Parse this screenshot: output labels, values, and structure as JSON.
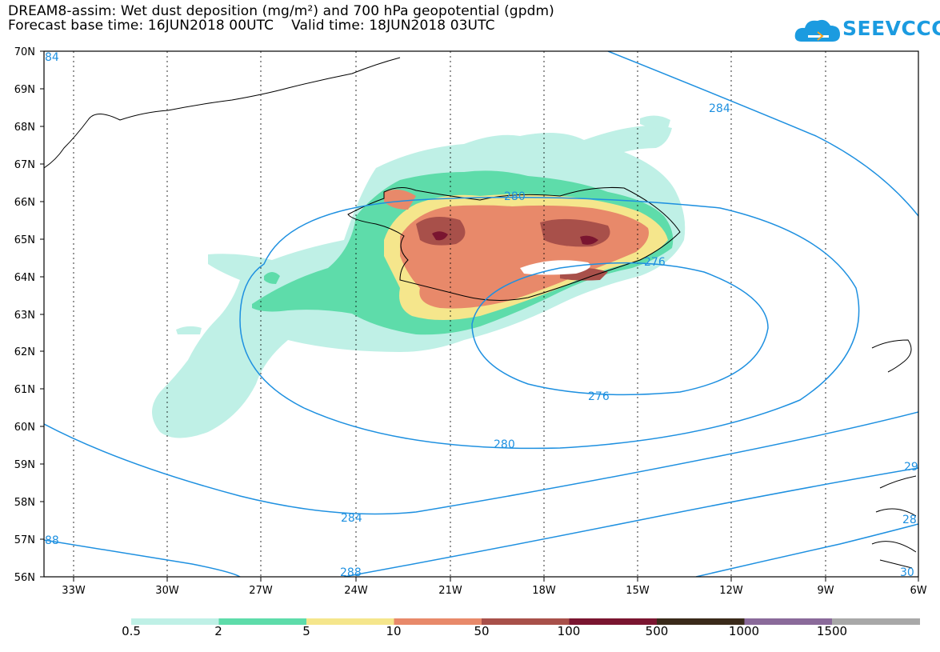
{
  "title": {
    "line1": "DREAM8-assim: Wet dust deposition (mg/m²) and 700 hPa geopotential (gpdm)",
    "line2": "Forecast base time: 16JUN2018 00UTC    Valid time: 18JUN2018 03UTC"
  },
  "logo": {
    "text": "SEEVCCC",
    "icon": "cloud-icon"
  },
  "map": {
    "lon_range": [
      -34,
      -6
    ],
    "lat_range": [
      56,
      70
    ],
    "y_ticks": [
      "70N",
      "69N",
      "68N",
      "67N",
      "66N",
      "65N",
      "64N",
      "63N",
      "62N",
      "61N",
      "60N",
      "59N",
      "58N",
      "57N",
      "56N"
    ],
    "x_ticks": [
      "33W",
      "30W",
      "27W",
      "24W",
      "21W",
      "18W",
      "15W",
      "12W",
      "9W",
      "6W"
    ],
    "contour_color": "#1e90e0",
    "contour_labels": [
      "84",
      "284",
      "280",
      "276",
      "276",
      "280",
      "284",
      "88",
      "288",
      "28",
      "30",
      "29"
    ]
  },
  "legend": {
    "labels": [
      "0.5",
      "2",
      "5",
      "10",
      "50",
      "100",
      "500",
      "1000",
      "1500"
    ],
    "colors": [
      "#bff0e6",
      "#5edcaa",
      "#f5e68c",
      "#e8896a",
      "#a8504a",
      "#7a1530",
      "#3a2a1a",
      "#8a6a9a",
      "#a8a8a8"
    ]
  }
}
